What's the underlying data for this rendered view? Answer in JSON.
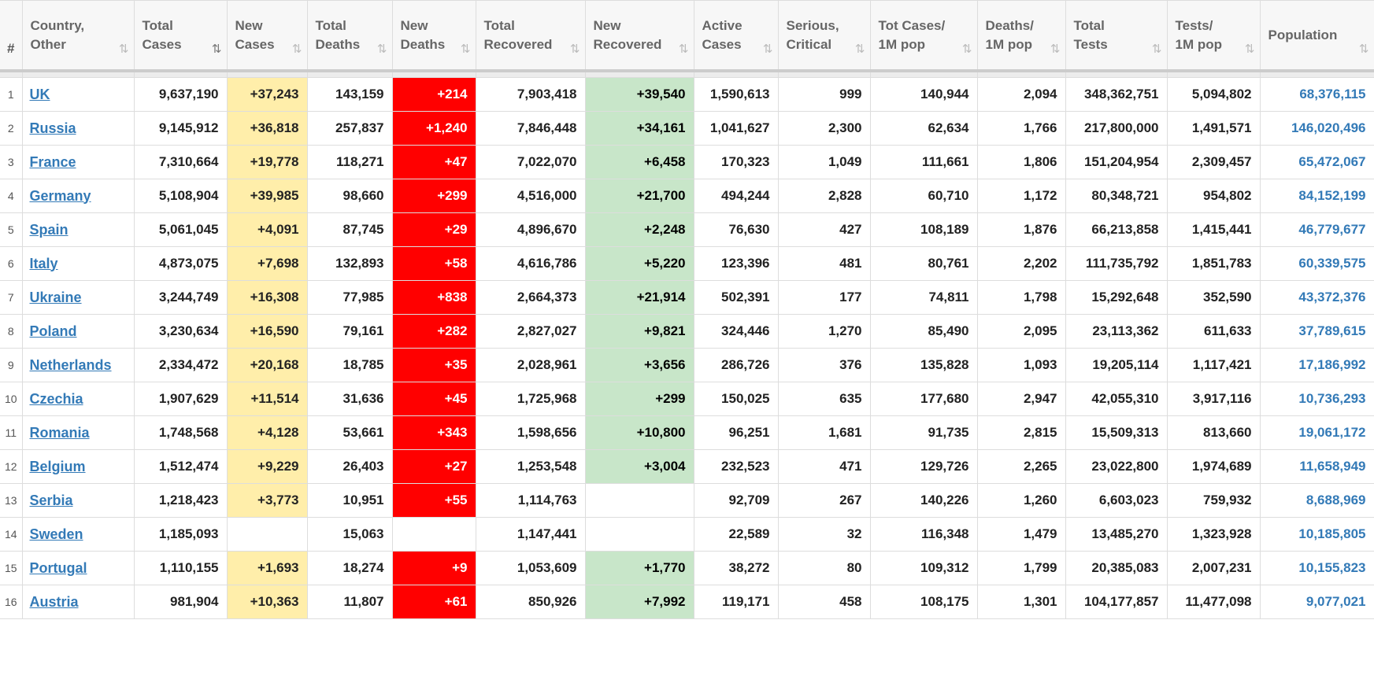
{
  "table": {
    "headers": [
      {
        "label1": "#",
        "label2": "",
        "sort": false
      },
      {
        "label1": "Country,",
        "label2": "Other",
        "sort": true
      },
      {
        "label1": "Total",
        "label2": "Cases",
        "sort": true,
        "active": true
      },
      {
        "label1": "New",
        "label2": "Cases",
        "sort": true
      },
      {
        "label1": "Total",
        "label2": "Deaths",
        "sort": true
      },
      {
        "label1": "New",
        "label2": "Deaths",
        "sort": true
      },
      {
        "label1": "Total",
        "label2": "Recovered",
        "sort": true
      },
      {
        "label1": "New",
        "label2": "Recovered",
        "sort": true
      },
      {
        "label1": "Active",
        "label2": "Cases",
        "sort": true
      },
      {
        "label1": "Serious,",
        "label2": "Critical",
        "sort": true
      },
      {
        "label1": "Tot Cases/",
        "label2": "1M pop",
        "sort": true
      },
      {
        "label1": "Deaths/",
        "label2": "1M pop",
        "sort": true
      },
      {
        "label1": "Total",
        "label2": "Tests",
        "sort": true
      },
      {
        "label1": "Tests/",
        "label2": "1M pop",
        "sort": true
      },
      {
        "label1": "Population",
        "label2": "",
        "sort": true
      }
    ],
    "sort_icon": "⇅",
    "sort_icon_active": "⇅",
    "rows": [
      {
        "rank": "1",
        "country": "UK",
        "total_cases": "9,637,190",
        "new_cases": "+37,243",
        "total_deaths": "143,159",
        "new_deaths": "+214",
        "total_recovered": "7,903,418",
        "new_recovered": "+39,540",
        "active_cases": "1,590,613",
        "serious": "999",
        "cases_per_m": "140,944",
        "deaths_per_m": "2,094",
        "total_tests": "348,362,751",
        "tests_per_m": "5,094,802",
        "population": "68,376,115"
      },
      {
        "rank": "2",
        "country": "Russia",
        "total_cases": "9,145,912",
        "new_cases": "+36,818",
        "total_deaths": "257,837",
        "new_deaths": "+1,240",
        "total_recovered": "7,846,448",
        "new_recovered": "+34,161",
        "active_cases": "1,041,627",
        "serious": "2,300",
        "cases_per_m": "62,634",
        "deaths_per_m": "1,766",
        "total_tests": "217,800,000",
        "tests_per_m": "1,491,571",
        "population": "146,020,496"
      },
      {
        "rank": "3",
        "country": "France",
        "total_cases": "7,310,664",
        "new_cases": "+19,778",
        "total_deaths": "118,271",
        "new_deaths": "+47",
        "total_recovered": "7,022,070",
        "new_recovered": "+6,458",
        "active_cases": "170,323",
        "serious": "1,049",
        "cases_per_m": "111,661",
        "deaths_per_m": "1,806",
        "total_tests": "151,204,954",
        "tests_per_m": "2,309,457",
        "population": "65,472,067"
      },
      {
        "rank": "4",
        "country": "Germany",
        "total_cases": "5,108,904",
        "new_cases": "+39,985",
        "total_deaths": "98,660",
        "new_deaths": "+299",
        "total_recovered": "4,516,000",
        "new_recovered": "+21,700",
        "active_cases": "494,244",
        "serious": "2,828",
        "cases_per_m": "60,710",
        "deaths_per_m": "1,172",
        "total_tests": "80,348,721",
        "tests_per_m": "954,802",
        "population": "84,152,199"
      },
      {
        "rank": "5",
        "country": "Spain",
        "total_cases": "5,061,045",
        "new_cases": "+4,091",
        "total_deaths": "87,745",
        "new_deaths": "+29",
        "total_recovered": "4,896,670",
        "new_recovered": "+2,248",
        "active_cases": "76,630",
        "serious": "427",
        "cases_per_m": "108,189",
        "deaths_per_m": "1,876",
        "total_tests": "66,213,858",
        "tests_per_m": "1,415,441",
        "population": "46,779,677"
      },
      {
        "rank": "6",
        "country": "Italy",
        "total_cases": "4,873,075",
        "new_cases": "+7,698",
        "total_deaths": "132,893",
        "new_deaths": "+58",
        "total_recovered": "4,616,786",
        "new_recovered": "+5,220",
        "active_cases": "123,396",
        "serious": "481",
        "cases_per_m": "80,761",
        "deaths_per_m": "2,202",
        "total_tests": "111,735,792",
        "tests_per_m": "1,851,783",
        "population": "60,339,575"
      },
      {
        "rank": "7",
        "country": "Ukraine",
        "total_cases": "3,244,749",
        "new_cases": "+16,308",
        "total_deaths": "77,985",
        "new_deaths": "+838",
        "total_recovered": "2,664,373",
        "new_recovered": "+21,914",
        "active_cases": "502,391",
        "serious": "177",
        "cases_per_m": "74,811",
        "deaths_per_m": "1,798",
        "total_tests": "15,292,648",
        "tests_per_m": "352,590",
        "population": "43,372,376"
      },
      {
        "rank": "8",
        "country": "Poland",
        "total_cases": "3,230,634",
        "new_cases": "+16,590",
        "total_deaths": "79,161",
        "new_deaths": "+282",
        "total_recovered": "2,827,027",
        "new_recovered": "+9,821",
        "active_cases": "324,446",
        "serious": "1,270",
        "cases_per_m": "85,490",
        "deaths_per_m": "2,095",
        "total_tests": "23,113,362",
        "tests_per_m": "611,633",
        "population": "37,789,615"
      },
      {
        "rank": "9",
        "country": "Netherlands",
        "total_cases": "2,334,472",
        "new_cases": "+20,168",
        "total_deaths": "18,785",
        "new_deaths": "+35",
        "total_recovered": "2,028,961",
        "new_recovered": "+3,656",
        "active_cases": "286,726",
        "serious": "376",
        "cases_per_m": "135,828",
        "deaths_per_m": "1,093",
        "total_tests": "19,205,114",
        "tests_per_m": "1,117,421",
        "population": "17,186,992"
      },
      {
        "rank": "10",
        "country": "Czechia",
        "total_cases": "1,907,629",
        "new_cases": "+11,514",
        "total_deaths": "31,636",
        "new_deaths": "+45",
        "total_recovered": "1,725,968",
        "new_recovered": "+299",
        "active_cases": "150,025",
        "serious": "635",
        "cases_per_m": "177,680",
        "deaths_per_m": "2,947",
        "total_tests": "42,055,310",
        "tests_per_m": "3,917,116",
        "population": "10,736,293"
      },
      {
        "rank": "11",
        "country": "Romania",
        "total_cases": "1,748,568",
        "new_cases": "+4,128",
        "total_deaths": "53,661",
        "new_deaths": "+343",
        "total_recovered": "1,598,656",
        "new_recovered": "+10,800",
        "active_cases": "96,251",
        "serious": "1,681",
        "cases_per_m": "91,735",
        "deaths_per_m": "2,815",
        "total_tests": "15,509,313",
        "tests_per_m": "813,660",
        "population": "19,061,172"
      },
      {
        "rank": "12",
        "country": "Belgium",
        "total_cases": "1,512,474",
        "new_cases": "+9,229",
        "total_deaths": "26,403",
        "new_deaths": "+27",
        "total_recovered": "1,253,548",
        "new_recovered": "+3,004",
        "active_cases": "232,523",
        "serious": "471",
        "cases_per_m": "129,726",
        "deaths_per_m": "2,265",
        "total_tests": "23,022,800",
        "tests_per_m": "1,974,689",
        "population": "11,658,949"
      },
      {
        "rank": "13",
        "country": "Serbia",
        "total_cases": "1,218,423",
        "new_cases": "+3,773",
        "total_deaths": "10,951",
        "new_deaths": "+55",
        "total_recovered": "1,114,763",
        "new_recovered": "",
        "active_cases": "92,709",
        "serious": "267",
        "cases_per_m": "140,226",
        "deaths_per_m": "1,260",
        "total_tests": "6,603,023",
        "tests_per_m": "759,932",
        "population": "8,688,969"
      },
      {
        "rank": "14",
        "country": "Sweden",
        "total_cases": "1,185,093",
        "new_cases": "",
        "total_deaths": "15,063",
        "new_deaths": "",
        "total_recovered": "1,147,441",
        "new_recovered": "",
        "active_cases": "22,589",
        "serious": "32",
        "cases_per_m": "116,348",
        "deaths_per_m": "1,479",
        "total_tests": "13,485,270",
        "tests_per_m": "1,323,928",
        "population": "10,185,805"
      },
      {
        "rank": "15",
        "country": "Portugal",
        "total_cases": "1,110,155",
        "new_cases": "+1,693",
        "total_deaths": "18,274",
        "new_deaths": "+9",
        "total_recovered": "1,053,609",
        "new_recovered": "+1,770",
        "active_cases": "38,272",
        "serious": "80",
        "cases_per_m": "109,312",
        "deaths_per_m": "1,799",
        "total_tests": "20,385,083",
        "tests_per_m": "2,007,231",
        "population": "10,155,823"
      },
      {
        "rank": "16",
        "country": "Austria",
        "total_cases": "981,904",
        "new_cases": "+10,363",
        "total_deaths": "11,807",
        "new_deaths": "+61",
        "total_recovered": "850,926",
        "new_recovered": "+7,992",
        "active_cases": "119,171",
        "serious": "458",
        "cases_per_m": "108,175",
        "deaths_per_m": "1,301",
        "total_tests": "104,177,857",
        "tests_per_m": "11,477,098",
        "population": "9,077,021"
      }
    ]
  },
  "colors": {
    "new_cases_bg": "#ffeeaa",
    "new_deaths_bg": "#ff0000",
    "new_recovered_bg": "#c8e6c9",
    "link": "#337ab7"
  }
}
